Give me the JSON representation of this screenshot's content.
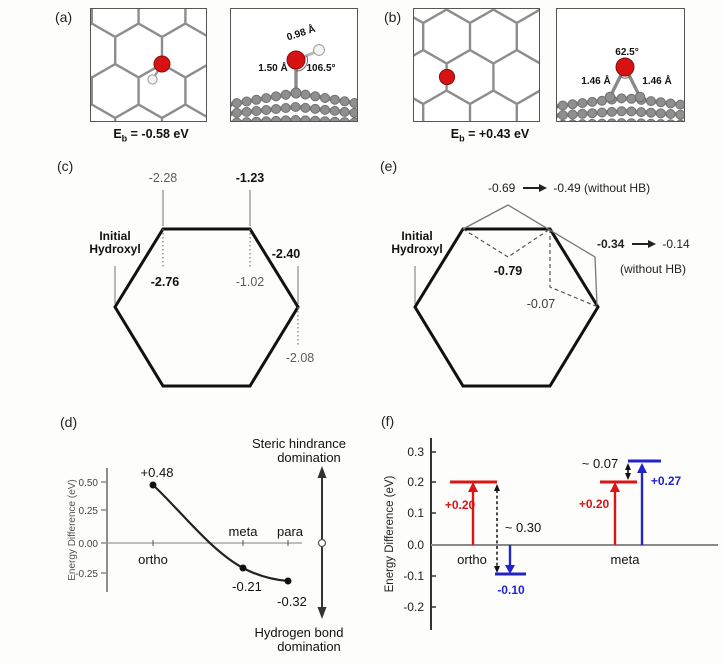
{
  "colors": {
    "red": "#dd1414",
    "blue": "#2323cc",
    "lattice_gray": "#8d8d8d",
    "axis_gray": "#8a8a8a",
    "ink": "#1a1a1a"
  },
  "panel_a": {
    "label": "(a)",
    "binding_energy": {
      "base": "E",
      "sub": "b",
      "rest": " = -0.58 eV"
    },
    "side_annotations": {
      "oh_bond": "0.98 Å",
      "co_bond": "1.50 Å",
      "angle": "106.5°"
    }
  },
  "panel_b": {
    "label": "(b)",
    "binding_energy": {
      "base": "E",
      "sub": "b",
      "rest": " = +0.43 eV"
    },
    "side_annotations": {
      "angle": "62.5°",
      "left_bond": "1.46 Å",
      "right_bond": "1.46 Å"
    }
  },
  "panel_c": {
    "label": "(c)",
    "initial_label": [
      "Initial",
      "Hydroxyl"
    ],
    "site_values": {
      "top_left_outer": "-2.28",
      "top_right_outer": "-1.23",
      "top_left_inner": "-2.76",
      "top_right_inner": "-1.02",
      "right_outer": "-2.40",
      "right_inner": "-2.08"
    }
  },
  "panel_e": {
    "label": "(e)",
    "initial_label": [
      "Initial",
      "Hydroxyl"
    ],
    "top_transition": {
      "from": "-0.69",
      "to": "-0.49 (without HB)"
    },
    "right_transition": {
      "from": "-0.34",
      "to": "-0.14",
      "note": "(without HB)"
    },
    "inner_values": {
      "upper": "-0.79",
      "lower": "-0.07"
    }
  },
  "panel_d": {
    "label": "(d)"
  },
  "panel_f": {
    "label": "(f)"
  },
  "chart_data": [
    {
      "panel": "d",
      "type": "line",
      "title": "",
      "ylabel": "Energy Difference (eV)",
      "categories": [
        "ortho",
        "meta",
        "para"
      ],
      "values": [
        0.48,
        -0.21,
        -0.32
      ],
      "point_labels": [
        "+0.48",
        "-0.21",
        "-0.32"
      ],
      "yticks": [
        "0.50",
        "0.25",
        "0.00",
        "-0.25"
      ],
      "ylim": [
        -0.45,
        0.6
      ],
      "grid": false,
      "annotations": {
        "arrow_top": [
          "Steric hindrance",
          "domination"
        ],
        "arrow_bottom": [
          "Hydrogen bond",
          "domination"
        ]
      }
    },
    {
      "panel": "f",
      "type": "bar",
      "ylabel": "Energy Difference (eV)",
      "categories": [
        "ortho",
        "meta"
      ],
      "yticks": [
        "0.3",
        "0.2",
        "0.1",
        "0.0",
        "-0.1",
        "-0.2"
      ],
      "ylim": [
        -0.25,
        0.35
      ],
      "series": [
        {
          "color": "#dd1414",
          "values": [
            0.2,
            0.2
          ],
          "labels": [
            "+0.20",
            "+0.20"
          ]
        },
        {
          "color": "#2323cc",
          "values": [
            -0.1,
            0.27
          ],
          "labels": [
            "-0.10",
            "+0.27"
          ]
        }
      ],
      "gap_labels": [
        "~ 0.30",
        "~ 0.07"
      ]
    }
  ]
}
